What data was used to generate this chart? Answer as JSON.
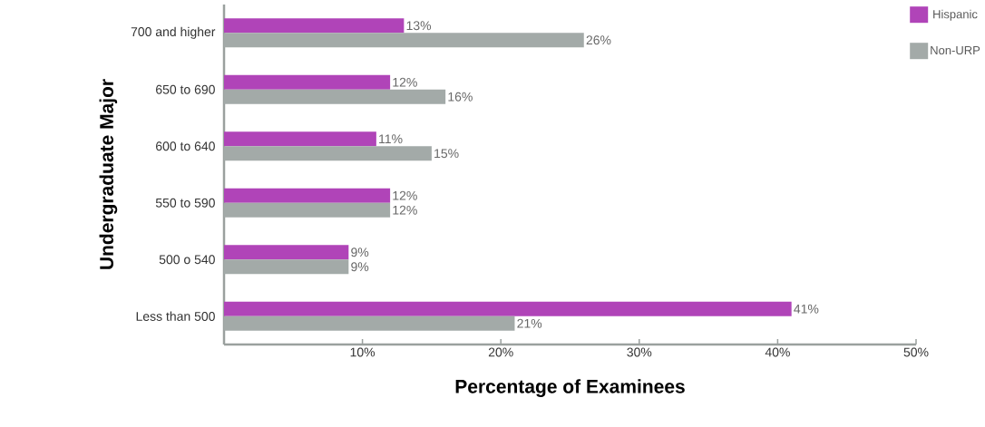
{
  "chart_data": {
    "type": "bar",
    "orientation": "horizontal",
    "xlabel": "Percentage of Examinees",
    "ylabel": "Undergraduate Major",
    "categories": [
      "700 and higher",
      "650 to 690",
      "600 to 640",
      "550 to 590",
      "500 o 540",
      "Less than 500"
    ],
    "series": [
      {
        "name": "Hispanic",
        "color": "#b044b8",
        "values": [
          13,
          12,
          11,
          12,
          9,
          41
        ],
        "value_labels": [
          "13%",
          "12%",
          "11%",
          "12%",
          "9%",
          "41%"
        ]
      },
      {
        "name": "Non-URP",
        "color": "#a3aaa8",
        "values": [
          26,
          16,
          15,
          12,
          9,
          21
        ],
        "value_labels": [
          "26%",
          "16%",
          "15%",
          "12%",
          "9%",
          "21%"
        ]
      }
    ],
    "xlim": [
      0,
      50
    ],
    "xticks": [
      {
        "value": 10,
        "label": "10%"
      },
      {
        "value": 20,
        "label": "20%"
      },
      {
        "value": 30,
        "label": "30%"
      },
      {
        "value": 40,
        "label": "40%"
      },
      {
        "value": 50,
        "label": "50%"
      }
    ],
    "grid": false,
    "legend": "top right"
  }
}
